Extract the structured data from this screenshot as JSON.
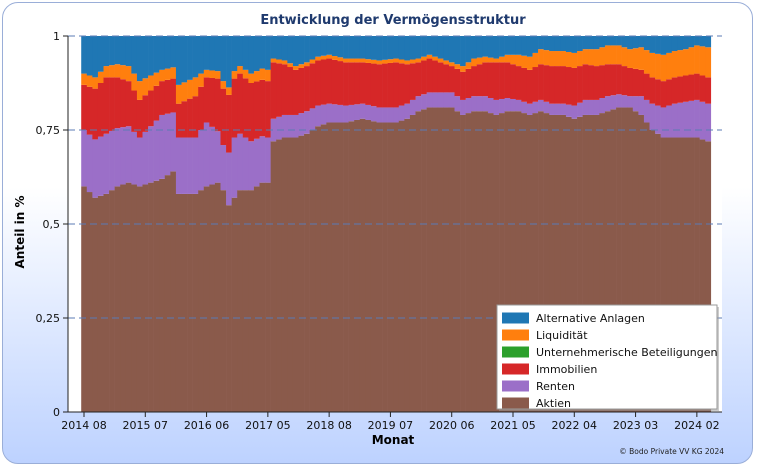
{
  "chart_data": {
    "type": "area",
    "title": "Entwicklung der Vermögensstruktur",
    "xlabel": "Monat",
    "ylabel": "Anteil in %",
    "ylim": [
      0,
      1
    ],
    "y_ticks": [
      "0",
      "0,25",
      "0,5",
      "0,75",
      "1"
    ],
    "y_tick_values": [
      0,
      0.25,
      0.5,
      0.75,
      1
    ],
    "x_ticks": [
      "2014 08",
      "2015 07",
      "2016 06",
      "2017 05",
      "2018 08",
      "2019 07",
      "2020 06",
      "2021 05",
      "2022 04",
      "2023 03",
      "2024 02"
    ],
    "x_tick_index": [
      0,
      11,
      22,
      33,
      44,
      55,
      66,
      77,
      88,
      99,
      110
    ],
    "n_months": 113,
    "legend_position": "bottom-right",
    "series": [
      {
        "name": "Aktien",
        "color": "#8a5a4b",
        "knots": [
          [
            0,
            0.6
          ],
          [
            2,
            0.57
          ],
          [
            4,
            0.58
          ],
          [
            6,
            0.6
          ],
          [
            8,
            0.61
          ],
          [
            10,
            0.6
          ],
          [
            12,
            0.61
          ],
          [
            14,
            0.62
          ],
          [
            16,
            0.64
          ],
          [
            17,
            0.58
          ],
          [
            20,
            0.58
          ],
          [
            22,
            0.6
          ],
          [
            24,
            0.61
          ],
          [
            25,
            0.59
          ],
          [
            26,
            0.55
          ],
          [
            28,
            0.59
          ],
          [
            30,
            0.59
          ],
          [
            32,
            0.61
          ],
          [
            33,
            0.61
          ],
          [
            34,
            0.72
          ],
          [
            36,
            0.73
          ],
          [
            38,
            0.73
          ],
          [
            40,
            0.74
          ],
          [
            42,
            0.76
          ],
          [
            44,
            0.77
          ],
          [
            47,
            0.77
          ],
          [
            50,
            0.78
          ],
          [
            53,
            0.77
          ],
          [
            56,
            0.77
          ],
          [
            58,
            0.78
          ],
          [
            60,
            0.8
          ],
          [
            62,
            0.81
          ],
          [
            66,
            0.81
          ],
          [
            68,
            0.79
          ],
          [
            70,
            0.8
          ],
          [
            72,
            0.8
          ],
          [
            74,
            0.79
          ],
          [
            76,
            0.8
          ],
          [
            78,
            0.8
          ],
          [
            80,
            0.79
          ],
          [
            82,
            0.8
          ],
          [
            84,
            0.79
          ],
          [
            86,
            0.79
          ],
          [
            88,
            0.78
          ],
          [
            90,
            0.79
          ],
          [
            92,
            0.79
          ],
          [
            94,
            0.8
          ],
          [
            96,
            0.81
          ],
          [
            98,
            0.81
          ],
          [
            100,
            0.79
          ],
          [
            102,
            0.75
          ],
          [
            104,
            0.73
          ],
          [
            108,
            0.73
          ],
          [
            110,
            0.73
          ],
          [
            112,
            0.72
          ]
        ]
      },
      {
        "name": "Renten",
        "color": "#9b6fc8",
        "knots": [
          [
            0,
            0.15
          ],
          [
            4,
            0.16
          ],
          [
            8,
            0.15
          ],
          [
            10,
            0.13
          ],
          [
            14,
            0.17
          ],
          [
            17,
            0.15
          ],
          [
            20,
            0.15
          ],
          [
            22,
            0.17
          ],
          [
            25,
            0.12
          ],
          [
            27,
            0.16
          ],
          [
            30,
            0.13
          ],
          [
            33,
            0.12
          ],
          [
            34,
            0.06
          ],
          [
            36,
            0.06
          ],
          [
            40,
            0.06
          ],
          [
            44,
            0.05
          ],
          [
            50,
            0.04
          ],
          [
            56,
            0.04
          ],
          [
            60,
            0.04
          ],
          [
            62,
            0.04
          ],
          [
            66,
            0.04
          ],
          [
            70,
            0.04
          ],
          [
            74,
            0.04
          ],
          [
            78,
            0.03
          ],
          [
            82,
            0.03
          ],
          [
            86,
            0.03
          ],
          [
            90,
            0.04
          ],
          [
            94,
            0.04
          ],
          [
            98,
            0.03
          ],
          [
            100,
            0.05
          ],
          [
            102,
            0.07
          ],
          [
            106,
            0.09
          ],
          [
            110,
            0.1
          ],
          [
            112,
            0.1
          ]
        ]
      },
      {
        "name": "Immobilien",
        "color": "#d62728",
        "knots": [
          [
            0,
            0.12
          ],
          [
            4,
            0.15
          ],
          [
            8,
            0.12
          ],
          [
            10,
            0.1
          ],
          [
            14,
            0.09
          ],
          [
            17,
            0.09
          ],
          [
            20,
            0.11
          ],
          [
            22,
            0.12
          ],
          [
            25,
            0.15
          ],
          [
            28,
            0.16
          ],
          [
            32,
            0.15
          ],
          [
            33,
            0.15
          ],
          [
            34,
            0.15
          ],
          [
            38,
            0.12
          ],
          [
            40,
            0.12
          ],
          [
            44,
            0.12
          ],
          [
            50,
            0.11
          ],
          [
            56,
            0.12
          ],
          [
            60,
            0.09
          ],
          [
            62,
            0.09
          ],
          [
            66,
            0.07
          ],
          [
            70,
            0.08
          ],
          [
            74,
            0.1
          ],
          [
            78,
            0.09
          ],
          [
            80,
            0.09
          ],
          [
            84,
            0.1
          ],
          [
            88,
            0.1
          ],
          [
            92,
            0.09
          ],
          [
            96,
            0.08
          ],
          [
            100,
            0.07
          ],
          [
            104,
            0.07
          ],
          [
            108,
            0.07
          ],
          [
            112,
            0.07
          ]
        ]
      },
      {
        "name": "Unternehmerische Beteiligungen",
        "color": "#2ca02c",
        "knots": [
          [
            0,
            0.0
          ],
          [
            112,
            0.0
          ]
        ]
      },
      {
        "name": "Liquidität",
        "color": "#ff7f0e",
        "knots": [
          [
            0,
            0.03
          ],
          [
            4,
            0.03
          ],
          [
            8,
            0.04
          ],
          [
            10,
            0.05
          ],
          [
            14,
            0.03
          ],
          [
            16,
            0.03
          ],
          [
            17,
            0.05
          ],
          [
            20,
            0.05
          ],
          [
            22,
            0.02
          ],
          [
            25,
            0.02
          ],
          [
            28,
            0.02
          ],
          [
            32,
            0.03
          ],
          [
            33,
            0.03
          ],
          [
            34,
            0.01
          ],
          [
            40,
            0.01
          ],
          [
            44,
            0.01
          ],
          [
            50,
            0.01
          ],
          [
            56,
            0.01
          ],
          [
            62,
            0.01
          ],
          [
            66,
            0.01
          ],
          [
            70,
            0.02
          ],
          [
            74,
            0.01
          ],
          [
            78,
            0.03
          ],
          [
            82,
            0.04
          ],
          [
            86,
            0.04
          ],
          [
            90,
            0.04
          ],
          [
            94,
            0.05
          ],
          [
            98,
            0.05
          ],
          [
            100,
            0.06
          ],
          [
            104,
            0.07
          ],
          [
            108,
            0.07
          ],
          [
            112,
            0.08
          ]
        ]
      }
    ],
    "top_series": {
      "name": "Alternative Anlagen",
      "color": "#1f77b4"
    },
    "legend": [
      "Alternative Anlagen",
      "Liquidität",
      "Unternehmerische Beteiligungen",
      "Immobilien",
      "Renten",
      "Aktien"
    ]
  },
  "footer": {
    "copyright": "© Bodo Private VV KG 2024"
  }
}
